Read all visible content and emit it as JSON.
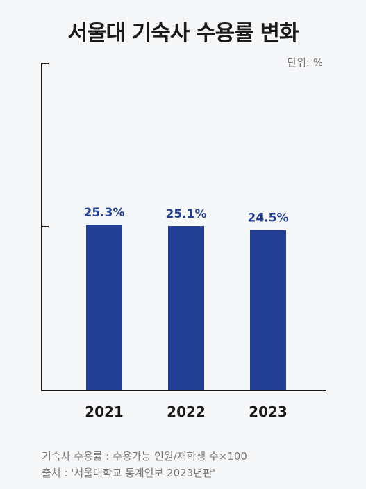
{
  "chart_data": {
    "type": "bar",
    "title": "서울대 기숙사 수용률 변화",
    "unit_label": "단위: %",
    "categories": [
      "2021",
      "2022",
      "2023"
    ],
    "values": [
      25.3,
      25.1,
      24.5
    ],
    "value_labels": [
      "25.3%",
      "25.1%",
      "24.5%"
    ],
    "ylim": [
      0,
      50
    ],
    "bar_color": "#223f95"
  },
  "notes": {
    "formula": "기숙사 수용률 : 수용가능 인원/재학생 수×100",
    "source": "출처 : '서울대학교 통계연보 2023년판'"
  }
}
